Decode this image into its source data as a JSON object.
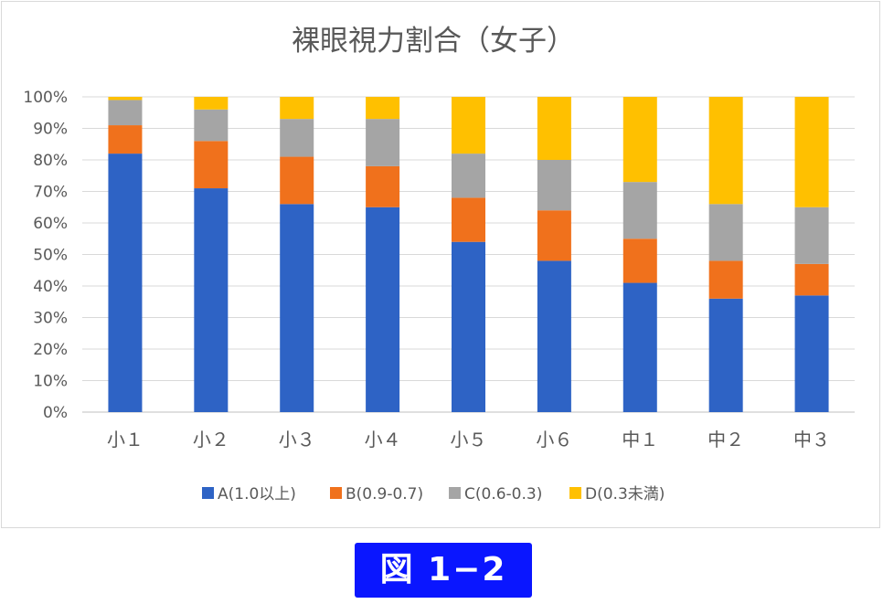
{
  "chart_data": {
    "type": "bar",
    "stacked": true,
    "title": "裸眼視力割合（女子）",
    "categories": [
      "小１",
      "小２",
      "小３",
      "小４",
      "小５",
      "小６",
      "中１",
      "中２",
      "中３"
    ],
    "series": [
      {
        "name": "A(1.0以上)",
        "color": "#2e63c5",
        "values": [
          82,
          71,
          66,
          65,
          54,
          48,
          41,
          36,
          37
        ]
      },
      {
        "name": "B(0.9-0.7)",
        "color": "#f0711c",
        "values": [
          9,
          15,
          15,
          13,
          14,
          16,
          14,
          12,
          10
        ]
      },
      {
        "name": "C(0.6-0.3)",
        "color": "#a5a5a5",
        "values": [
          8,
          10,
          12,
          15,
          14,
          16,
          18,
          18,
          18
        ]
      },
      {
        "name": "D(0.3未満)",
        "color": "#ffc000",
        "values": [
          1,
          4,
          7,
          7,
          18,
          20,
          27,
          34,
          35
        ]
      }
    ],
    "ylim": [
      0,
      100
    ],
    "yticks": [
      "0%",
      "10%",
      "20%",
      "30%",
      "40%",
      "50%",
      "60%",
      "70%",
      "80%",
      "90%",
      "100%"
    ],
    "grid": true,
    "legend": "bottom"
  },
  "figure_label": "図 1−2"
}
